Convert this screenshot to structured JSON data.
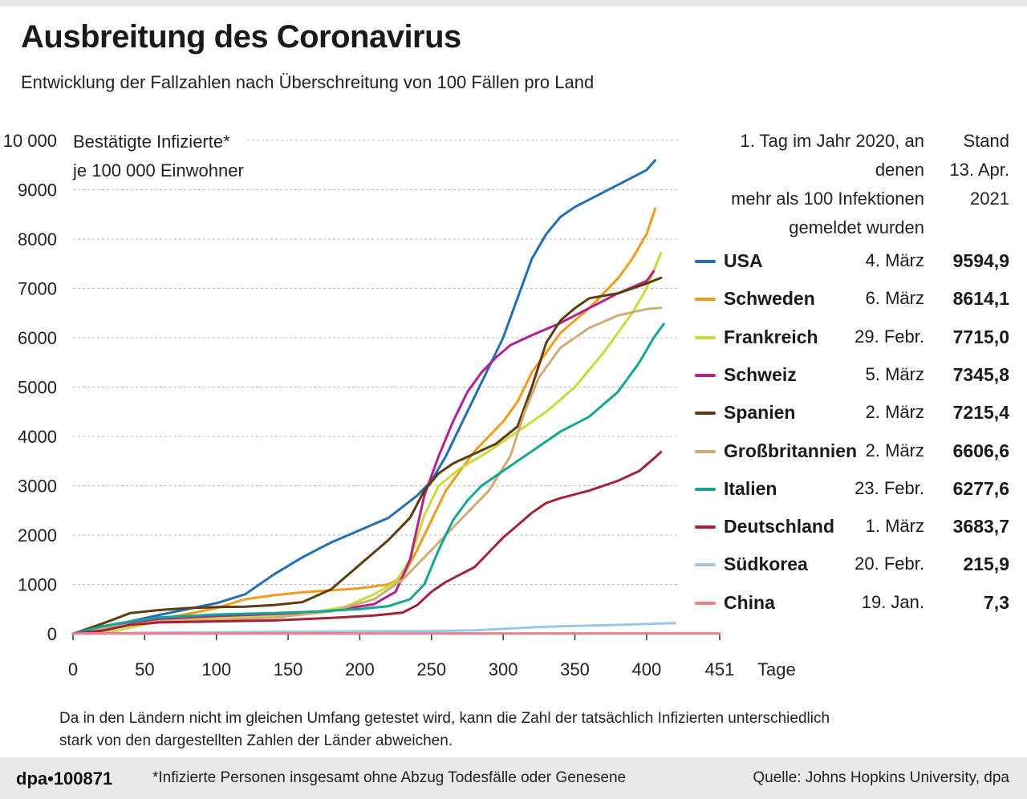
{
  "title": "Ausbreitung des Coronavirus",
  "subtitle": "Entwicklung der Fallzahlen nach Überschreitung von 100 Fällen pro Land",
  "colors": {
    "usa": "#1f6fb2",
    "schweden": "#f39a1c",
    "frankreich": "#c9da3c",
    "schweiz": "#b5208f",
    "spanien": "#5c3d0b",
    "grossbritannien": "#cfab72",
    "italien": "#14a595",
    "deutschland": "#a3223a",
    "suedkorea": "#9cc6e8",
    "china": "#ef7d8a"
  },
  "legend": {
    "header_date": [
      "1. Tag im Jahr 2020, an denen",
      "mehr als 100 Infektionen",
      "gemeldet wurden"
    ],
    "header_value": [
      "Stand",
      "13. Apr.",
      "2021"
    ],
    "items": [
      {
        "name": "USA",
        "date": "4. März",
        "value": "9594,9",
        "color_key": "usa"
      },
      {
        "name": "Schweden",
        "date": "6. März",
        "value": "8614,1",
        "color_key": "schweden"
      },
      {
        "name": "Frankreich",
        "date": "29. Febr.",
        "value": "7715,0",
        "color_key": "frankreich"
      },
      {
        "name": "Schweiz",
        "date": "5. März",
        "value": "7345,8",
        "color_key": "schweiz"
      },
      {
        "name": "Spanien",
        "date": "2. März",
        "value": "7215,4",
        "color_key": "spanien"
      },
      {
        "name": "Großbritannien",
        "date": "2. März",
        "value": "6606,6",
        "color_key": "grossbritannien"
      },
      {
        "name": "Italien",
        "date": "23. Febr.",
        "value": "6277,6",
        "color_key": "italien"
      },
      {
        "name": "Deutschland",
        "date": "1. März",
        "value": "3683,7",
        "color_key": "deutschland"
      },
      {
        "name": "Südkorea",
        "date": "20. Febr.",
        "value": "215,9",
        "color_key": "suedkorea"
      },
      {
        "name": "China",
        "date": "19. Jan.",
        "value": "7,3",
        "color_key": "china"
      }
    ]
  },
  "note": "Da in den Ländern nicht im gleichen Umfang getestet wird, kann die Zahl der tatsächlich Infizierten unterschiedlich stark von den dargestellten Zahlen der Länder abweichen.",
  "footer": {
    "logo": "dpa•100871",
    "footnote": "*Infizierte Personen insgesamt ohne Abzug Todesfälle oder Genesene",
    "source": "Quelle: Johns Hopkins University, dpa"
  },
  "chart_data": {
    "type": "line",
    "title": "Ausbreitung des Coronavirus",
    "ylabel_lines": [
      "Bestätigte Infizierte*",
      "je 100 000 Einwohner"
    ],
    "xlabel": "Tage",
    "xlim": [
      0,
      451
    ],
    "ylim": [
      0,
      10000
    ],
    "x_ticks": [
      "0",
      "50",
      "100",
      "150",
      "200",
      "250",
      "300",
      "350",
      "400",
      "451"
    ],
    "x_tick_values": [
      0,
      50,
      100,
      150,
      200,
      250,
      300,
      350,
      400,
      451
    ],
    "y_ticks": [
      "0",
      "1000",
      "2000",
      "3000",
      "4000",
      "5000",
      "6000",
      "7000",
      "8000",
      "9000",
      "10 000"
    ],
    "y_tick_values": [
      0,
      1000,
      2000,
      3000,
      4000,
      5000,
      6000,
      7000,
      8000,
      9000,
      10000
    ],
    "series": [
      {
        "name": "USA",
        "color_key": "usa",
        "points": [
          [
            0,
            0
          ],
          [
            20,
            50
          ],
          [
            40,
            250
          ],
          [
            60,
            380
          ],
          [
            80,
            500
          ],
          [
            100,
            620
          ],
          [
            120,
            800
          ],
          [
            140,
            1200
          ],
          [
            160,
            1550
          ],
          [
            180,
            1850
          ],
          [
            200,
            2100
          ],
          [
            220,
            2350
          ],
          [
            240,
            2800
          ],
          [
            250,
            3100
          ],
          [
            260,
            3600
          ],
          [
            270,
            4200
          ],
          [
            280,
            4800
          ],
          [
            290,
            5400
          ],
          [
            300,
            6000
          ],
          [
            310,
            6800
          ],
          [
            320,
            7600
          ],
          [
            330,
            8100
          ],
          [
            340,
            8450
          ],
          [
            350,
            8650
          ],
          [
            360,
            8800
          ],
          [
            380,
            9100
          ],
          [
            400,
            9400
          ],
          [
            406,
            9594.9
          ]
        ]
      },
      {
        "name": "Schweden",
        "color_key": "schweden",
        "points": [
          [
            0,
            0
          ],
          [
            20,
            50
          ],
          [
            40,
            200
          ],
          [
            60,
            300
          ],
          [
            80,
            400
          ],
          [
            100,
            520
          ],
          [
            120,
            700
          ],
          [
            140,
            780
          ],
          [
            160,
            840
          ],
          [
            180,
            880
          ],
          [
            200,
            920
          ],
          [
            220,
            1000
          ],
          [
            230,
            1150
          ],
          [
            240,
            1700
          ],
          [
            250,
            2300
          ],
          [
            260,
            2900
          ],
          [
            270,
            3300
          ],
          [
            280,
            3700
          ],
          [
            290,
            4000
          ],
          [
            300,
            4300
          ],
          [
            310,
            4700
          ],
          [
            320,
            5300
          ],
          [
            330,
            5700
          ],
          [
            340,
            6100
          ],
          [
            350,
            6350
          ],
          [
            360,
            6600
          ],
          [
            370,
            6900
          ],
          [
            380,
            7200
          ],
          [
            390,
            7600
          ],
          [
            400,
            8100
          ],
          [
            406,
            8614.1
          ]
        ]
      },
      {
        "name": "Frankreich",
        "color_key": "frankreich",
        "points": [
          [
            0,
            0
          ],
          [
            30,
            60
          ],
          [
            60,
            250
          ],
          [
            100,
            330
          ],
          [
            140,
            380
          ],
          [
            170,
            440
          ],
          [
            190,
            550
          ],
          [
            210,
            800
          ],
          [
            225,
            1050
          ],
          [
            235,
            1500
          ],
          [
            245,
            2400
          ],
          [
            255,
            3000
          ],
          [
            270,
            3350
          ],
          [
            290,
            3700
          ],
          [
            310,
            4100
          ],
          [
            330,
            4500
          ],
          [
            350,
            5000
          ],
          [
            370,
            5700
          ],
          [
            390,
            6500
          ],
          [
            400,
            7000
          ],
          [
            410,
            7715
          ]
        ]
      },
      {
        "name": "Schweiz",
        "color_key": "schweiz",
        "points": [
          [
            0,
            0
          ],
          [
            15,
            100
          ],
          [
            30,
            200
          ],
          [
            60,
            300
          ],
          [
            100,
            360
          ],
          [
            140,
            400
          ],
          [
            180,
            460
          ],
          [
            210,
            600
          ],
          [
            225,
            850
          ],
          [
            235,
            1500
          ],
          [
            245,
            2800
          ],
          [
            255,
            3600
          ],
          [
            265,
            4300
          ],
          [
            275,
            4900
          ],
          [
            285,
            5300
          ],
          [
            295,
            5600
          ],
          [
            305,
            5850
          ],
          [
            320,
            6050
          ],
          [
            340,
            6300
          ],
          [
            360,
            6600
          ],
          [
            380,
            6900
          ],
          [
            400,
            7150
          ],
          [
            405,
            7345.8
          ]
        ]
      },
      {
        "name": "Spanien",
        "color_key": "spanien",
        "points": [
          [
            0,
            0
          ],
          [
            20,
            200
          ],
          [
            40,
            420
          ],
          [
            60,
            480
          ],
          [
            80,
            520
          ],
          [
            100,
            540
          ],
          [
            120,
            550
          ],
          [
            140,
            580
          ],
          [
            160,
            640
          ],
          [
            180,
            900
          ],
          [
            200,
            1400
          ],
          [
            220,
            1900
          ],
          [
            235,
            2350
          ],
          [
            245,
            2900
          ],
          [
            255,
            3250
          ],
          [
            265,
            3450
          ],
          [
            280,
            3650
          ],
          [
            295,
            3850
          ],
          [
            310,
            4200
          ],
          [
            320,
            5000
          ],
          [
            330,
            5900
          ],
          [
            340,
            6350
          ],
          [
            350,
            6600
          ],
          [
            360,
            6800
          ],
          [
            380,
            6900
          ],
          [
            400,
            7100
          ],
          [
            410,
            7215.4
          ]
        ]
      },
      {
        "name": "Großbritannien",
        "color_key": "grossbritannien",
        "points": [
          [
            0,
            0
          ],
          [
            30,
            150
          ],
          [
            60,
            250
          ],
          [
            100,
            280
          ],
          [
            140,
            330
          ],
          [
            180,
            450
          ],
          [
            210,
            700
          ],
          [
            230,
            1100
          ],
          [
            250,
            1700
          ],
          [
            270,
            2300
          ],
          [
            290,
            2900
          ],
          [
            305,
            3600
          ],
          [
            315,
            4500
          ],
          [
            325,
            5200
          ],
          [
            340,
            5800
          ],
          [
            360,
            6200
          ],
          [
            380,
            6450
          ],
          [
            400,
            6580
          ],
          [
            410,
            6606.6
          ]
        ]
      },
      {
        "name": "Italien",
        "color_key": "italien",
        "points": [
          [
            0,
            0
          ],
          [
            20,
            150
          ],
          [
            40,
            250
          ],
          [
            60,
            330
          ],
          [
            100,
            390
          ],
          [
            140,
            420
          ],
          [
            170,
            450
          ],
          [
            200,
            500
          ],
          [
            220,
            560
          ],
          [
            235,
            700
          ],
          [
            245,
            1000
          ],
          [
            255,
            1700
          ],
          [
            265,
            2300
          ],
          [
            275,
            2700
          ],
          [
            285,
            3000
          ],
          [
            300,
            3300
          ],
          [
            320,
            3700
          ],
          [
            340,
            4100
          ],
          [
            360,
            4400
          ],
          [
            380,
            4900
          ],
          [
            395,
            5500
          ],
          [
            405,
            6000
          ],
          [
            412,
            6277.6
          ]
        ]
      },
      {
        "name": "Deutschland",
        "color_key": "deutschland",
        "points": [
          [
            0,
            0
          ],
          [
            20,
            60
          ],
          [
            40,
            180
          ],
          [
            60,
            230
          ],
          [
            100,
            250
          ],
          [
            140,
            270
          ],
          [
            180,
            320
          ],
          [
            210,
            370
          ],
          [
            230,
            430
          ],
          [
            240,
            580
          ],
          [
            250,
            850
          ],
          [
            260,
            1050
          ],
          [
            270,
            1200
          ],
          [
            280,
            1350
          ],
          [
            290,
            1650
          ],
          [
            300,
            1950
          ],
          [
            310,
            2200
          ],
          [
            320,
            2450
          ],
          [
            330,
            2650
          ],
          [
            340,
            2750
          ],
          [
            360,
            2900
          ],
          [
            380,
            3100
          ],
          [
            395,
            3300
          ],
          [
            405,
            3550
          ],
          [
            410,
            3683.7
          ]
        ]
      },
      {
        "name": "Südkorea",
        "color_key": "suedkorea",
        "points": [
          [
            0,
            0
          ],
          [
            50,
            20
          ],
          [
            100,
            30
          ],
          [
            150,
            40
          ],
          [
            200,
            50
          ],
          [
            250,
            55
          ],
          [
            280,
            70
          ],
          [
            300,
            100
          ],
          [
            320,
            130
          ],
          [
            340,
            150
          ],
          [
            360,
            165
          ],
          [
            380,
            180
          ],
          [
            400,
            200
          ],
          [
            420,
            215.9
          ]
        ]
      },
      {
        "name": "China",
        "color_key": "china",
        "points": [
          [
            0,
            5
          ],
          [
            100,
            6
          ],
          [
            200,
            6.5
          ],
          [
            300,
            7
          ],
          [
            451,
            7.3
          ]
        ]
      }
    ]
  }
}
